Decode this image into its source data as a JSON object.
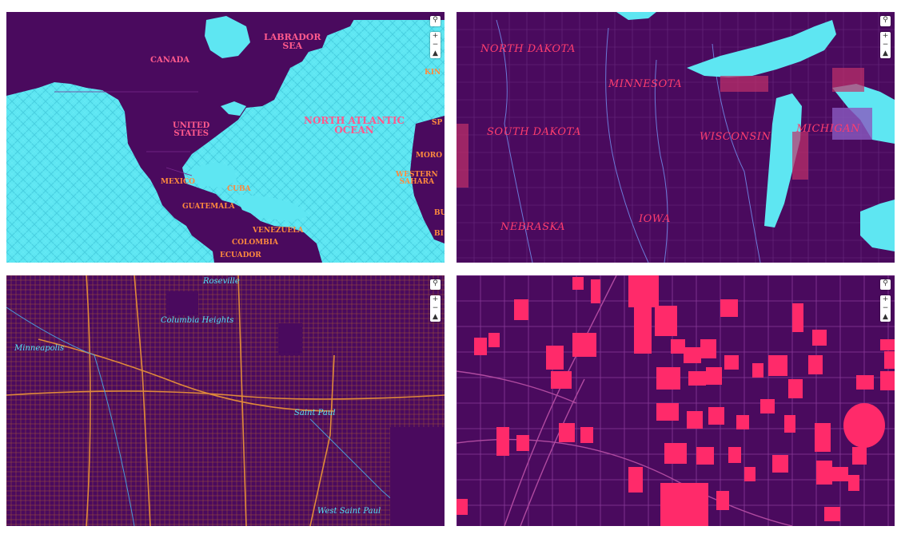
{
  "colors": {
    "land": "#4a0a5e",
    "water": "#5ee6f2",
    "road_orange": "#d8803a",
    "building_pink": "#ff2a6a",
    "label_pink": "#ff5a8c",
    "label_orange": "#ff8a3d",
    "label_red_script": "#ff3d6e",
    "label_cyan": "#52e2f7"
  },
  "controls": {
    "search_icon": "search-icon",
    "zoom_in": "+",
    "zoom_out": "−",
    "north": "▲"
  },
  "panels": [
    {
      "id": "continental",
      "labels": {
        "labrador_sea": "LABRADOR\nSEA",
        "canada": "CANADA",
        "united_states": "UNITED\nSTATES",
        "north_atlantic": "NORTH ATLANTIC\nOCEAN",
        "mexico": "MEXICO",
        "cuba": "CUBA",
        "guatemala": "GUATEMALA",
        "venezuela": "VENEZUELA",
        "colombia": "COLOMBIA",
        "ecuador": "ECUADOR",
        "morocco_partial": "MORO",
        "western_sahara": "WESTERN\nSAHARA",
        "spain_partial": "SP",
        "kingdom_partial": "KIN",
        "bu_partial": "BU",
        "bi_partial": "BI"
      }
    },
    {
      "id": "midwest",
      "labels": {
        "north_dakota": "NORTH DAKOTA",
        "minnesota": "MINNESOTA",
        "south_dakota": "SOUTH DAKOTA",
        "wisconsin": "WISCONSIN",
        "michigan": "MICHIGAN",
        "nebraska": "NEBRASKA",
        "iowa": "IOWA"
      }
    },
    {
      "id": "twin_cities",
      "labels": {
        "roseville": "Roseville",
        "columbia_heights": "Columbia Heights",
        "minneapolis": "Minneapolis",
        "saint_paul": "Saint Paul",
        "west_saint_paul": "West Saint Paul"
      }
    },
    {
      "id": "downtown",
      "labels": {}
    }
  ]
}
